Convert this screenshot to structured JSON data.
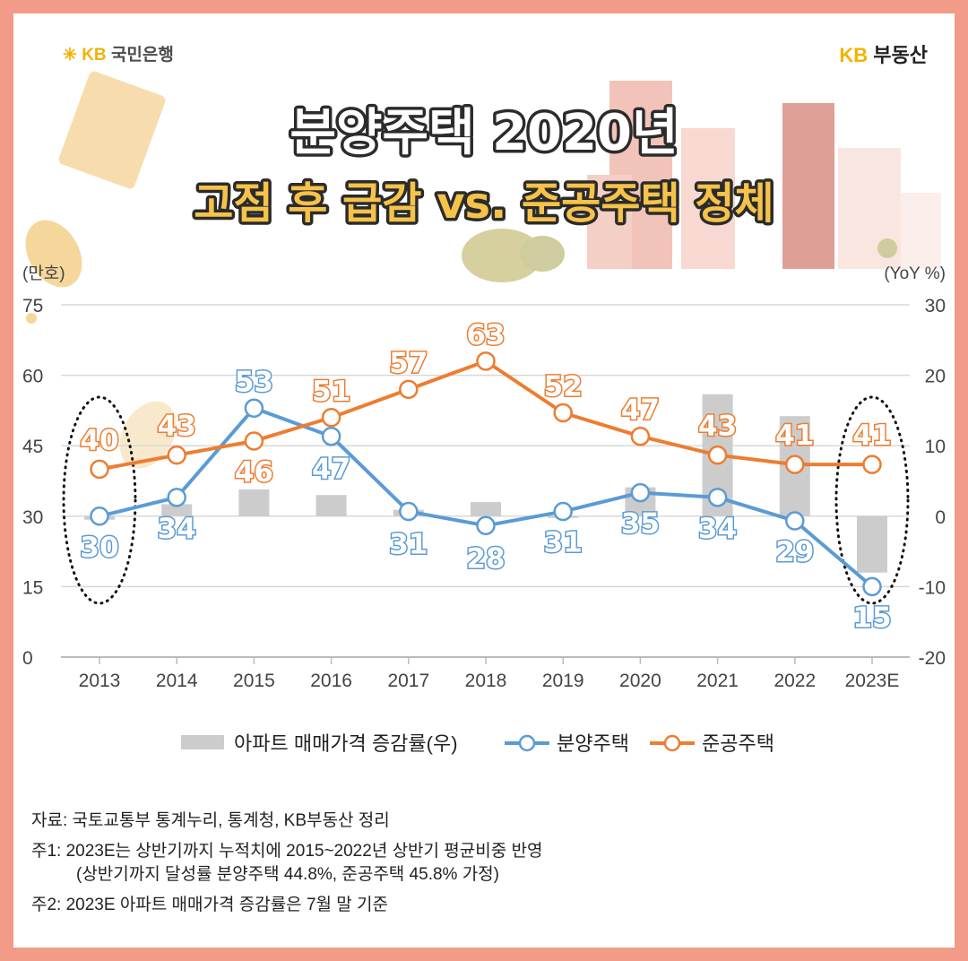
{
  "brand": {
    "left_kb": "KB",
    "left_text": "국민은행",
    "right_kb": "KB",
    "right_text": "부동산"
  },
  "title": {
    "line1": "분양주택 2020년",
    "line2": "고점 후 급감 vs. 준공주택 정체"
  },
  "chart_data": {
    "type": "line",
    "categories": [
      "2013",
      "2014",
      "2015",
      "2016",
      "2017",
      "2018",
      "2019",
      "2020",
      "2021",
      "2022",
      "2023E"
    ],
    "left_axis": {
      "unit_label": "(만호)",
      "ticks": [
        "0",
        "15",
        "30",
        "45",
        "60",
        "75"
      ],
      "range": [
        0,
        75
      ]
    },
    "right_axis": {
      "unit_label": "(YoY %)",
      "ticks": [
        "-20",
        "-10",
        "0",
        "10",
        "20",
        "30"
      ],
      "range": [
        -20,
        30
      ]
    },
    "series": [
      {
        "name": "아파트 매매가격 증감률(우)",
        "type": "bar",
        "axis": "right",
        "color": "#cccccc",
        "values": [
          -0.5,
          1.7,
          3.8,
          3.0,
          0.9,
          2.0,
          0.0,
          4.1,
          17.3,
          14.2,
          -8.0
        ]
      },
      {
        "name": "분양주택",
        "type": "line",
        "axis": "left",
        "color": "#5b9bd5",
        "values": [
          30,
          34,
          53,
          47,
          31,
          28,
          31,
          35,
          34,
          29,
          15
        ],
        "labels": [
          "30",
          "34",
          "53",
          "47",
          "31",
          "28",
          "31",
          "35",
          "34",
          "29",
          "15"
        ]
      },
      {
        "name": "준공주택",
        "type": "line",
        "axis": "left",
        "color": "#ed7d31",
        "values": [
          40,
          43,
          46,
          51,
          57,
          63,
          52,
          47,
          43,
          41,
          41
        ],
        "labels": [
          "40",
          "43",
          "46",
          "51",
          "57",
          "63",
          "52",
          "47",
          "43",
          "41",
          "41"
        ]
      }
    ],
    "legend_position": "bottom",
    "highlighted_categories": [
      "2013",
      "2023E"
    ]
  },
  "notes": {
    "source": "자료: 국토교통부 통계누리, 통계청, KB부동산 정리",
    "note1_a": "주1: 2023E는 상반기까지 누적치에 2015~2022년 상반기 평균비중 반영",
    "note1_b": "(상반기까지 달성률 분양주택 44.8%, 준공주택 45.8% 가정)",
    "note2": "주2: 2023E 아파트 매매가격 증감률은 7월 말 기준"
  },
  "colors": {
    "background": "#f29b88",
    "card": "#ffffff",
    "title_fill": "#ffffff",
    "title_fill_2": "#f5c24a",
    "title_stroke": "#2b2b2b"
  }
}
